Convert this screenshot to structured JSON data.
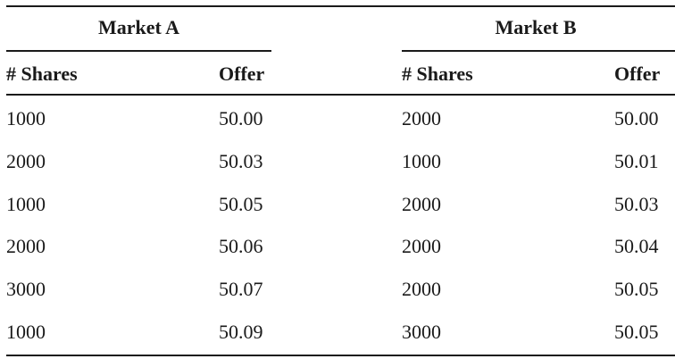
{
  "markets": [
    {
      "title": "Market A",
      "headers": {
        "shares": "# Shares",
        "offer": "Offer"
      },
      "rows": [
        {
          "shares": "1000",
          "offer": "50.00"
        },
        {
          "shares": "2000",
          "offer": "50.03"
        },
        {
          "shares": "1000",
          "offer": "50.05"
        },
        {
          "shares": "2000",
          "offer": "50.06"
        },
        {
          "shares": "3000",
          "offer": "50.07"
        },
        {
          "shares": "1000",
          "offer": "50.09"
        }
      ]
    },
    {
      "title": "Market B",
      "headers": {
        "shares": "# Shares",
        "offer": "Offer"
      },
      "rows": [
        {
          "shares": "2000",
          "offer": "50.00"
        },
        {
          "shares": "1000",
          "offer": "50.01"
        },
        {
          "shares": "2000",
          "offer": "50.03"
        },
        {
          "shares": "2000",
          "offer": "50.04"
        },
        {
          "shares": "2000",
          "offer": "50.05"
        },
        {
          "shares": "3000",
          "offer": "50.05"
        }
      ]
    }
  ]
}
